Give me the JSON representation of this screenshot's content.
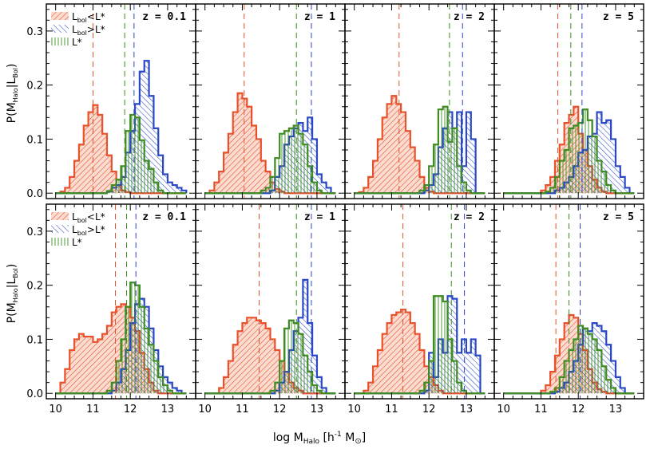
{
  "chart_data": {
    "type": "histogram-grid",
    "xlabel": "log M_Halo [h^-1 M_⊙]",
    "ylabel": "P(M_Halo|L_Bol)",
    "xlim": [
      9.75,
      13.75
    ],
    "ylim": [
      -0.01,
      0.35
    ],
    "xticks": [
      10,
      11,
      12,
      13
    ],
    "yticks": [
      0.0,
      0.1,
      0.2,
      0.3
    ],
    "ytick_labels": [
      "0.0",
      "0.1",
      "0.2",
      "0.3"
    ],
    "colors": {
      "low": "#e8512b",
      "high": "#2a48c4",
      "mid": "#3e8c22"
    },
    "legend": {
      "low": {
        "main": "L",
        "sub": "bol",
        "rest": "<L*"
      },
      "high": {
        "main": "L",
        "sub": "bol",
        "rest": ">L*"
      },
      "mid": {
        "main": "L*"
      }
    },
    "panels": [
      {
        "row": 0,
        "col": 0,
        "label": "z = 0.1",
        "low": {
          "x0": 10.0,
          "dx": 0.125,
          "y": [
            0,
            0.003,
            0.01,
            0.03,
            0.06,
            0.09,
            0.125,
            0.15,
            0.163,
            0.145,
            0.11,
            0.07,
            0.04,
            0.015,
            0.005,
            0.002,
            0,
            0,
            0,
            0,
            0,
            0,
            0,
            0,
            0,
            0,
            0,
            0
          ]
        },
        "high": {
          "x0": 10.0,
          "dx": 0.125,
          "y": [
            0,
            0,
            0,
            0,
            0,
            0,
            0,
            0,
            0,
            0,
            0,
            0.003,
            0.01,
            0.015,
            0.03,
            0.075,
            0.115,
            0.165,
            0.225,
            0.245,
            0.18,
            0.12,
            0.07,
            0.035,
            0.02,
            0.015,
            0.01,
            0.005
          ]
        },
        "mid": {
          "x0": 10.0,
          "dx": 0.125,
          "y": [
            0,
            0,
            0,
            0,
            0,
            0,
            0,
            0,
            0,
            0,
            0,
            0.004,
            0.015,
            0.025,
            0.05,
            0.115,
            0.145,
            0.14,
            0.098,
            0.06,
            0.045,
            0.02,
            0.005,
            0,
            0,
            0,
            0,
            0
          ]
        },
        "vlines": {
          "low": 11.0,
          "mid": 11.85,
          "high": 12.1
        }
      },
      {
        "row": 0,
        "col": 1,
        "label": "z = 1",
        "low": {
          "x0": 10.0,
          "dx": 0.125,
          "y": [
            0,
            0.005,
            0.02,
            0.04,
            0.075,
            0.11,
            0.15,
            0.185,
            0.175,
            0.16,
            0.125,
            0.1,
            0.06,
            0.04,
            0.02,
            0.008,
            0.003,
            0,
            0,
            0,
            0,
            0,
            0,
            0,
            0,
            0,
            0,
            0
          ]
        },
        "high": {
          "x0": 10.0,
          "dx": 0.125,
          "y": [
            0,
            0,
            0,
            0,
            0,
            0,
            0,
            0,
            0,
            0,
            0,
            0,
            0,
            0,
            0.005,
            0.03,
            0.05,
            0.09,
            0.105,
            0.12,
            0.13,
            0.115,
            0.14,
            0.1,
            0.035,
            0.02,
            0.01,
            0
          ]
        },
        "mid": {
          "x0": 10.0,
          "dx": 0.125,
          "y": [
            0,
            0,
            0,
            0,
            0,
            0,
            0,
            0,
            0,
            0,
            0,
            0,
            0.005,
            0.01,
            0.03,
            0.065,
            0.11,
            0.115,
            0.12,
            0.125,
            0.11,
            0.09,
            0.05,
            0.02,
            0.005,
            0,
            0,
            0
          ]
        },
        "vlines": {
          "low": 11.05,
          "mid": 12.45,
          "high": 12.85
        }
      },
      {
        "row": 0,
        "col": 2,
        "label": "z = 2",
        "low": {
          "x0": 10.0,
          "dx": 0.125,
          "y": [
            0,
            0.002,
            0.01,
            0.03,
            0.06,
            0.1,
            0.14,
            0.165,
            0.18,
            0.165,
            0.15,
            0.115,
            0.085,
            0.06,
            0.03,
            0.01,
            0.003,
            0,
            0,
            0,
            0,
            0,
            0,
            0,
            0,
            0,
            0,
            0
          ]
        },
        "high": {
          "x0": 10.0,
          "dx": 0.125,
          "y": [
            0,
            0,
            0,
            0,
            0,
            0,
            0,
            0,
            0,
            0,
            0,
            0,
            0,
            0,
            0,
            0.005,
            0.015,
            0.035,
            0.085,
            0.12,
            0.15,
            0.12,
            0.15,
            0.05,
            0.15,
            0.1,
            0,
            0
          ]
        },
        "mid": {
          "x0": 10.0,
          "dx": 0.125,
          "y": [
            0,
            0,
            0,
            0,
            0,
            0,
            0,
            0,
            0,
            0,
            0,
            0,
            0,
            0,
            0.005,
            0.015,
            0.05,
            0.09,
            0.155,
            0.16,
            0.095,
            0.12,
            0.05,
            0.02,
            0.005,
            0,
            0,
            0
          ]
        },
        "vlines": {
          "low": 11.2,
          "mid": 12.55,
          "high": 12.9
        }
      },
      {
        "row": 0,
        "col": 3,
        "label": "z = 5",
        "low": {
          "x0": 10.0,
          "dx": 0.125,
          "y": [
            0,
            0,
            0,
            0,
            0,
            0,
            0,
            0,
            0.005,
            0.015,
            0.03,
            0.06,
            0.09,
            0.13,
            0.145,
            0.16,
            0.11,
            0.08,
            0.05,
            0.025,
            0.01,
            0.003,
            0,
            0,
            0,
            0,
            0,
            0
          ]
        },
        "high": {
          "x0": 10.0,
          "dx": 0.125,
          "y": [
            0,
            0,
            0,
            0,
            0,
            0,
            0,
            0,
            0,
            0,
            0,
            0.005,
            0.01,
            0.02,
            0.03,
            0.05,
            0.075,
            0.08,
            0.105,
            0.11,
            0.15,
            0.13,
            0.135,
            0.1,
            0.05,
            0.03,
            0.01,
            0
          ]
        },
        "mid": {
          "x0": 10.0,
          "dx": 0.125,
          "y": [
            0,
            0,
            0,
            0,
            0,
            0,
            0,
            0,
            0,
            0.003,
            0.01,
            0.03,
            0.06,
            0.08,
            0.12,
            0.125,
            0.13,
            0.155,
            0.135,
            0.105,
            0.06,
            0.04,
            0.015,
            0.005,
            0,
            0,
            0,
            0
          ]
        },
        "vlines": {
          "low": 11.45,
          "mid": 11.8,
          "high": 12.1
        }
      },
      {
        "row": 1,
        "col": 0,
        "label": "z = 0.1",
        "low": {
          "x0": 10.0,
          "dx": 0.125,
          "y": [
            0,
            0.02,
            0.045,
            0.08,
            0.1,
            0.11,
            0.105,
            0.105,
            0.095,
            0.1,
            0.11,
            0.125,
            0.15,
            0.16,
            0.165,
            0.16,
            0.14,
            0.115,
            0.075,
            0.045,
            0.02,
            0.005,
            0,
            0,
            0,
            0,
            0,
            0
          ]
        },
        "high": {
          "x0": 10.0,
          "dx": 0.125,
          "y": [
            0,
            0,
            0,
            0,
            0,
            0,
            0,
            0,
            0,
            0,
            0,
            0,
            0.005,
            0.02,
            0.045,
            0.08,
            0.13,
            0.165,
            0.175,
            0.16,
            0.12,
            0.08,
            0.05,
            0.03,
            0.02,
            0.01,
            0.005,
            0
          ]
        },
        "mid": {
          "x0": 10.0,
          "dx": 0.125,
          "y": [
            0,
            0,
            0,
            0,
            0,
            0,
            0,
            0,
            0,
            0,
            0,
            0.005,
            0.02,
            0.06,
            0.1,
            0.16,
            0.205,
            0.2,
            0.16,
            0.12,
            0.09,
            0.06,
            0.03,
            0.015,
            0.005,
            0,
            0,
            0
          ]
        },
        "vlines": {
          "low": 11.6,
          "mid": 11.9,
          "high": 12.15
        }
      },
      {
        "row": 1,
        "col": 1,
        "label": "z = 1",
        "low": {
          "x0": 10.0,
          "dx": 0.125,
          "y": [
            0,
            0,
            0,
            0.01,
            0.03,
            0.06,
            0.09,
            0.115,
            0.13,
            0.14,
            0.14,
            0.135,
            0.13,
            0.12,
            0.1,
            0.08,
            0.06,
            0.04,
            0.02,
            0.01,
            0.005,
            0,
            0,
            0,
            0,
            0,
            0,
            0
          ]
        },
        "high": {
          "x0": 10.0,
          "dx": 0.125,
          "y": [
            0,
            0,
            0,
            0,
            0,
            0,
            0,
            0,
            0,
            0,
            0,
            0,
            0,
            0,
            0,
            0.005,
            0.02,
            0.04,
            0.08,
            0.115,
            0.14,
            0.21,
            0.13,
            0.07,
            0.03,
            0.01,
            0,
            0
          ]
        },
        "mid": {
          "x0": 10.0,
          "dx": 0.125,
          "y": [
            0,
            0,
            0,
            0,
            0,
            0,
            0,
            0,
            0,
            0,
            0,
            0,
            0,
            0,
            0.005,
            0.02,
            0.06,
            0.12,
            0.135,
            0.13,
            0.11,
            0.07,
            0.04,
            0.015,
            0.005,
            0,
            0,
            0
          ]
        },
        "vlines": {
          "low": 11.45,
          "mid": 12.45,
          "high": 12.85
        }
      },
      {
        "row": 1,
        "col": 2,
        "label": "z = 2",
        "low": {
          "x0": 10.0,
          "dx": 0.125,
          "y": [
            0,
            0,
            0.005,
            0.02,
            0.05,
            0.08,
            0.11,
            0.13,
            0.145,
            0.15,
            0.155,
            0.15,
            0.13,
            0.11,
            0.08,
            0.05,
            0.03,
            0.015,
            0.005,
            0,
            0,
            0,
            0,
            0,
            0,
            0,
            0,
            0
          ]
        },
        "high": {
          "x0": 10.0,
          "dx": 0.125,
          "y": [
            0,
            0,
            0,
            0,
            0,
            0,
            0,
            0,
            0,
            0,
            0,
            0,
            0,
            0,
            0,
            0.005,
            0.075,
            0.03,
            0.1,
            0.075,
            0.18,
            0.175,
            0.075,
            0.1,
            0.075,
            0.1,
            0.07,
            0
          ]
        },
        "mid": {
          "x0": 10.0,
          "dx": 0.125,
          "y": [
            0,
            0,
            0,
            0,
            0,
            0,
            0,
            0,
            0,
            0,
            0,
            0,
            0,
            0,
            0.005,
            0.02,
            0.06,
            0.18,
            0.18,
            0.17,
            0.1,
            0.06,
            0.02,
            0.005,
            0,
            0,
            0,
            0
          ]
        },
        "vlines": {
          "low": 11.3,
          "mid": 12.6,
          "high": 12.95
        }
      },
      {
        "row": 1,
        "col": 3,
        "label": "z = 5",
        "low": {
          "x0": 10.0,
          "dx": 0.125,
          "y": [
            0,
            0,
            0,
            0,
            0,
            0,
            0,
            0,
            0.005,
            0.015,
            0.04,
            0.07,
            0.1,
            0.13,
            0.145,
            0.14,
            0.11,
            0.08,
            0.045,
            0.02,
            0.008,
            0.003,
            0,
            0,
            0,
            0,
            0,
            0
          ]
        },
        "high": {
          "x0": 10.0,
          "dx": 0.125,
          "y": [
            0,
            0,
            0,
            0,
            0,
            0,
            0,
            0,
            0,
            0,
            0,
            0.003,
            0.01,
            0.02,
            0.04,
            0.06,
            0.09,
            0.12,
            0.115,
            0.13,
            0.125,
            0.115,
            0.09,
            0.06,
            0.03,
            0.01,
            0,
            0
          ]
        },
        "mid": {
          "x0": 10.0,
          "dx": 0.125,
          "y": [
            0,
            0,
            0,
            0,
            0,
            0,
            0,
            0,
            0,
            0,
            0.003,
            0.01,
            0.03,
            0.06,
            0.08,
            0.1,
            0.125,
            0.12,
            0.11,
            0.1,
            0.08,
            0.05,
            0.025,
            0.01,
            0,
            0,
            0,
            0
          ]
        },
        "vlines": {
          "low": 11.4,
          "mid": 11.75,
          "high": 12.05
        }
      }
    ]
  }
}
